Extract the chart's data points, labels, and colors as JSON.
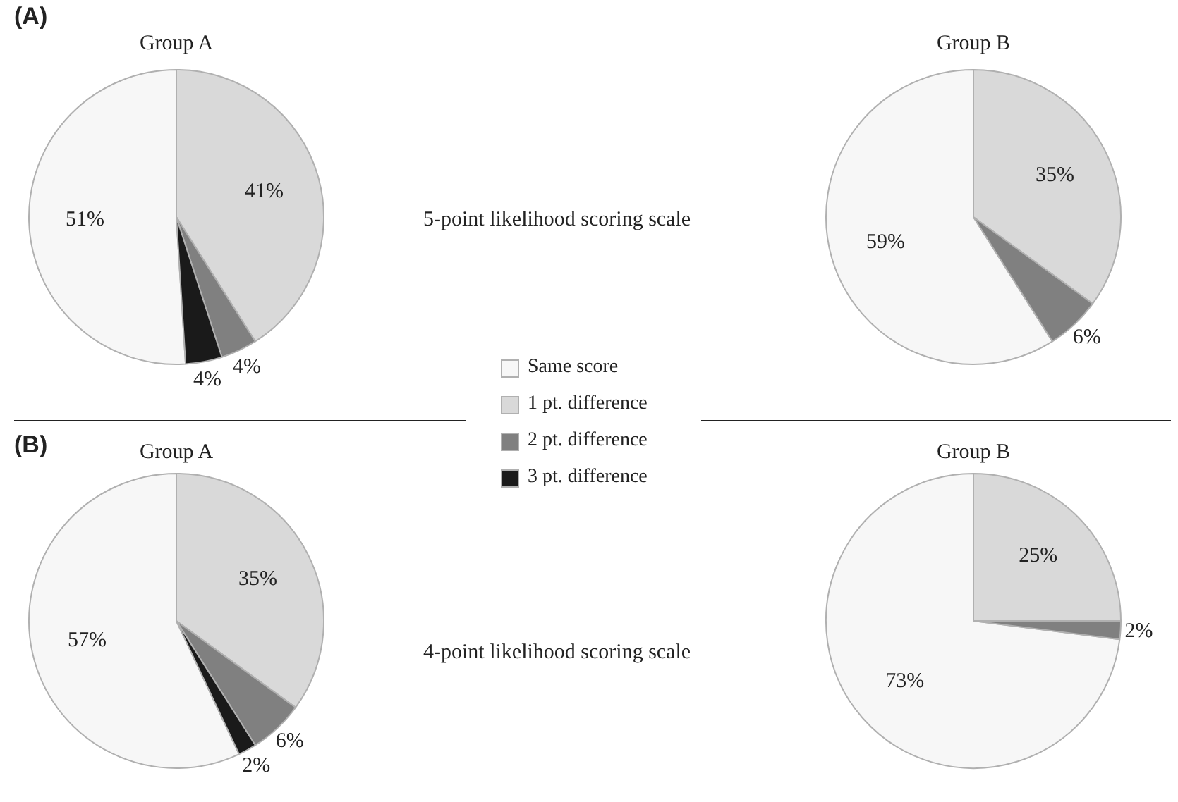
{
  "chart_data": [
    {
      "type": "pie",
      "title": "Group A",
      "categories": [
        "Same score",
        "1 pt. difference",
        "2 pt. difference",
        "3 pt. difference"
      ],
      "values": [
        51,
        41,
        4,
        4
      ],
      "colors": [
        "#f7f7f7",
        "#d9d9d9",
        "#808080",
        "#1a1a1a"
      ],
      "value_labels": [
        "51%",
        "41%",
        "4%",
        "4%"
      ],
      "legend": "right",
      "annotations": [
        "(A)",
        "5-point likelihood scoring scale"
      ]
    },
    {
      "type": "pie",
      "title": "Group B",
      "categories": [
        null,
        null,
        null
      ],
      "values": [
        59,
        35,
        6
      ],
      "colors": [
        "#f7f7f7",
        "#d9d9d9",
        "#808080"
      ],
      "value_labels": [
        "59%",
        "35%",
        "6%"
      ]
    },
    {
      "type": "pie",
      "title": "Group A",
      "categories": [
        null,
        null,
        null,
        null
      ],
      "values": [
        57,
        35,
        6,
        2
      ],
      "colors": [
        "#f7f7f7",
        "#d9d9d9",
        "#808080",
        "#1a1a1a"
      ],
      "value_labels": [
        "57%",
        "35%",
        "6%",
        "2%"
      ],
      "annotations": [
        "(B)",
        "4-point likelihood scoring scale"
      ]
    },
    {
      "type": "pie",
      "title": "Group B",
      "categories": [
        null,
        null,
        null
      ],
      "values": [
        73,
        25,
        2
      ],
      "colors": [
        "#f7f7f7",
        "#d9d9d9",
        "#808080"
      ],
      "value_labels": [
        "73%",
        "25%",
        "2%"
      ]
    }
  ]
}
